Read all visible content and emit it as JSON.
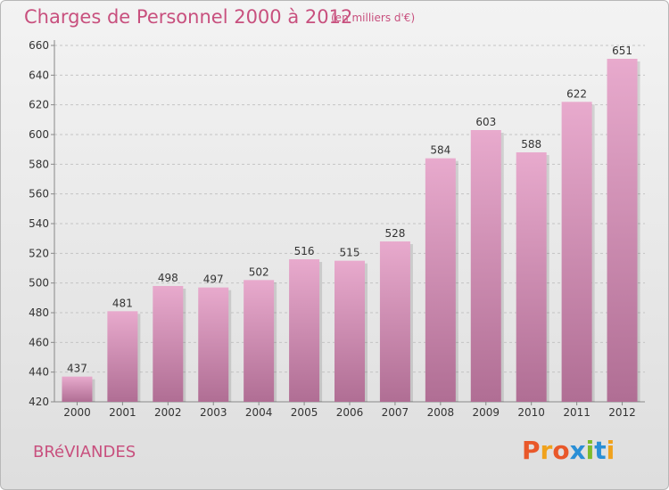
{
  "title": "Charges de Personnel 2000 à 2012",
  "subtitle": "(en milliers d'€)",
  "commune": "BRéVIANDES",
  "logo": {
    "letters": [
      "P",
      "r",
      "o",
      "x",
      "i",
      "t",
      "i"
    ],
    "colors": [
      "#e9582a",
      "#f0a21c",
      "#e9582a",
      "#2a8fd6",
      "#7dbb2a",
      "#2a8fd6",
      "#f0a21c"
    ]
  },
  "colors": {
    "bar_top": "#e8aacd",
    "bar_bottom": "#b06e94",
    "title": "#c8507e"
  },
  "chart_data": {
    "type": "bar",
    "title": "Charges de Personnel 2000 à 2012",
    "subtitle": "(en milliers d'€)",
    "categories": [
      "2000",
      "2001",
      "2002",
      "2003",
      "2004",
      "2005",
      "2006",
      "2007",
      "2008",
      "2009",
      "2010",
      "2011",
      "2012"
    ],
    "values": [
      437,
      481,
      498,
      497,
      502,
      516,
      515,
      528,
      584,
      603,
      588,
      622,
      651
    ],
    "ylim": [
      420,
      660
    ],
    "yticks": [
      420,
      440,
      460,
      480,
      500,
      520,
      540,
      560,
      580,
      600,
      620,
      640,
      660
    ],
    "grid": true,
    "xlabel": "",
    "ylabel": ""
  }
}
